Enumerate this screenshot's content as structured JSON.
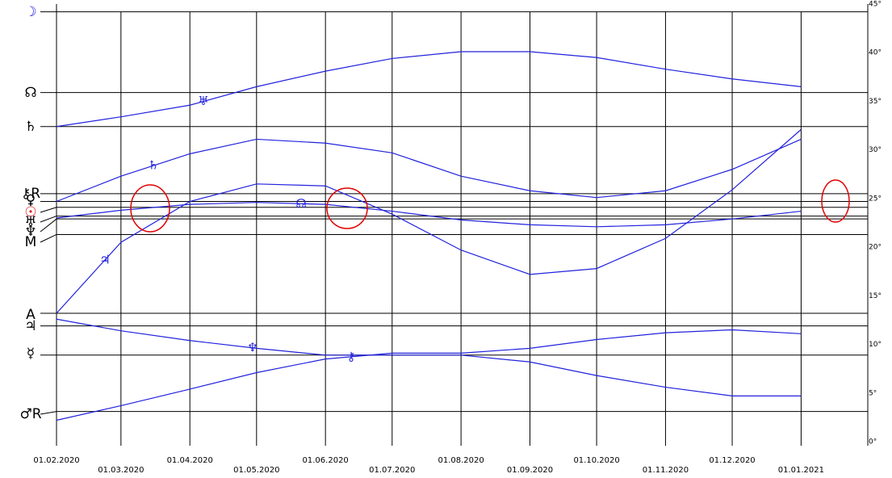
{
  "chart_data": {
    "type": "line",
    "x": [
      "01.02.2020",
      "01.03.2020",
      "01.04.2020",
      "01.05.2020",
      "01.06.2020",
      "01.07.2020",
      "01.08.2020",
      "01.09.2020",
      "01.10.2020",
      "01.11.2020",
      "01.12.2020",
      "01.01.2021"
    ],
    "ylim": [
      0,
      45
    ],
    "yticks": [
      {
        "value": 0,
        "label": "0°"
      },
      {
        "value": 5,
        "label": "5°"
      },
      {
        "value": 10,
        "label": "10°"
      },
      {
        "value": 15,
        "label": "15°"
      },
      {
        "value": 20,
        "label": "20°"
      },
      {
        "value": 25,
        "label": "25°"
      },
      {
        "value": 30,
        "label": "30°"
      },
      {
        "value": 35,
        "label": "35°"
      },
      {
        "value": 40,
        "label": "40°"
      },
      {
        "value": 45,
        "label": "45°"
      }
    ],
    "natal": [
      {
        "label": "☽",
        "value": 44.2,
        "color": "#1a1adf"
      },
      {
        "label": "☊",
        "value": 35.9,
        "color": "#000000"
      },
      {
        "label": "♄",
        "value": 32.4,
        "color": "#000000"
      },
      {
        "label": "⚷R",
        "value": 25.5,
        "color": "#000000"
      },
      {
        "label": "♀",
        "value": 24.7,
        "color": "#000000"
      },
      {
        "label": "☉",
        "value": 24.1,
        "color": "#e00000"
      },
      {
        "label": "♅",
        "value": 23.2,
        "color": "#000000"
      },
      {
        "label": "♆",
        "value": 22.9,
        "color": "#000000"
      },
      {
        "label": "M",
        "value": 21.3,
        "color": "#000000"
      },
      {
        "label": "A",
        "value": 13.2,
        "color": "#000000"
      },
      {
        "label": "♃",
        "value": 11.9,
        "color": "#000000"
      },
      {
        "label": "☿",
        "value": 8.9,
        "color": "#000000"
      },
      {
        "label": "♂R",
        "value": 3.1,
        "color": "#000000"
      }
    ],
    "series": [
      {
        "name": "♅",
        "color": "#2222dd",
        "values": [
          32.4,
          33.4,
          34.6,
          36.5,
          38.1,
          39.4,
          40.1,
          40.1,
          39.5,
          38.3,
          37.3,
          36.5
        ]
      },
      {
        "name": "♄",
        "color": "#2222dd",
        "values": [
          24.7,
          27.3,
          29.6,
          31.1,
          30.7,
          29.7,
          27.3,
          25.8,
          25.1,
          25.8,
          28.0,
          31.1
        ]
      },
      {
        "name": "♃",
        "color": "#2222dd",
        "values": [
          13.2,
          20.5,
          24.7,
          26.5,
          26.3,
          23.4,
          19.7,
          17.2,
          17.8,
          20.9,
          25.9,
          32.1
        ]
      },
      {
        "name": "☊",
        "color": "#2222dd",
        "values": [
          23.0,
          23.8,
          24.4,
          24.6,
          24.4,
          23.7,
          22.8,
          22.3,
          22.1,
          22.3,
          22.9,
          23.7
        ]
      },
      {
        "name": "♆",
        "color": "#2222dd",
        "values": [
          12.6,
          11.4,
          10.4,
          9.6,
          8.9,
          8.9,
          8.9,
          8.2,
          6.8,
          5.6,
          4.7,
          4.7
        ]
      },
      {
        "name": "⚷",
        "color": "#2222dd",
        "values": [
          2.2,
          3.7,
          5.4,
          7.1,
          8.5,
          9.1,
          9.1,
          9.6,
          10.5,
          11.2,
          11.5,
          11.1
        ]
      }
    ]
  }
}
